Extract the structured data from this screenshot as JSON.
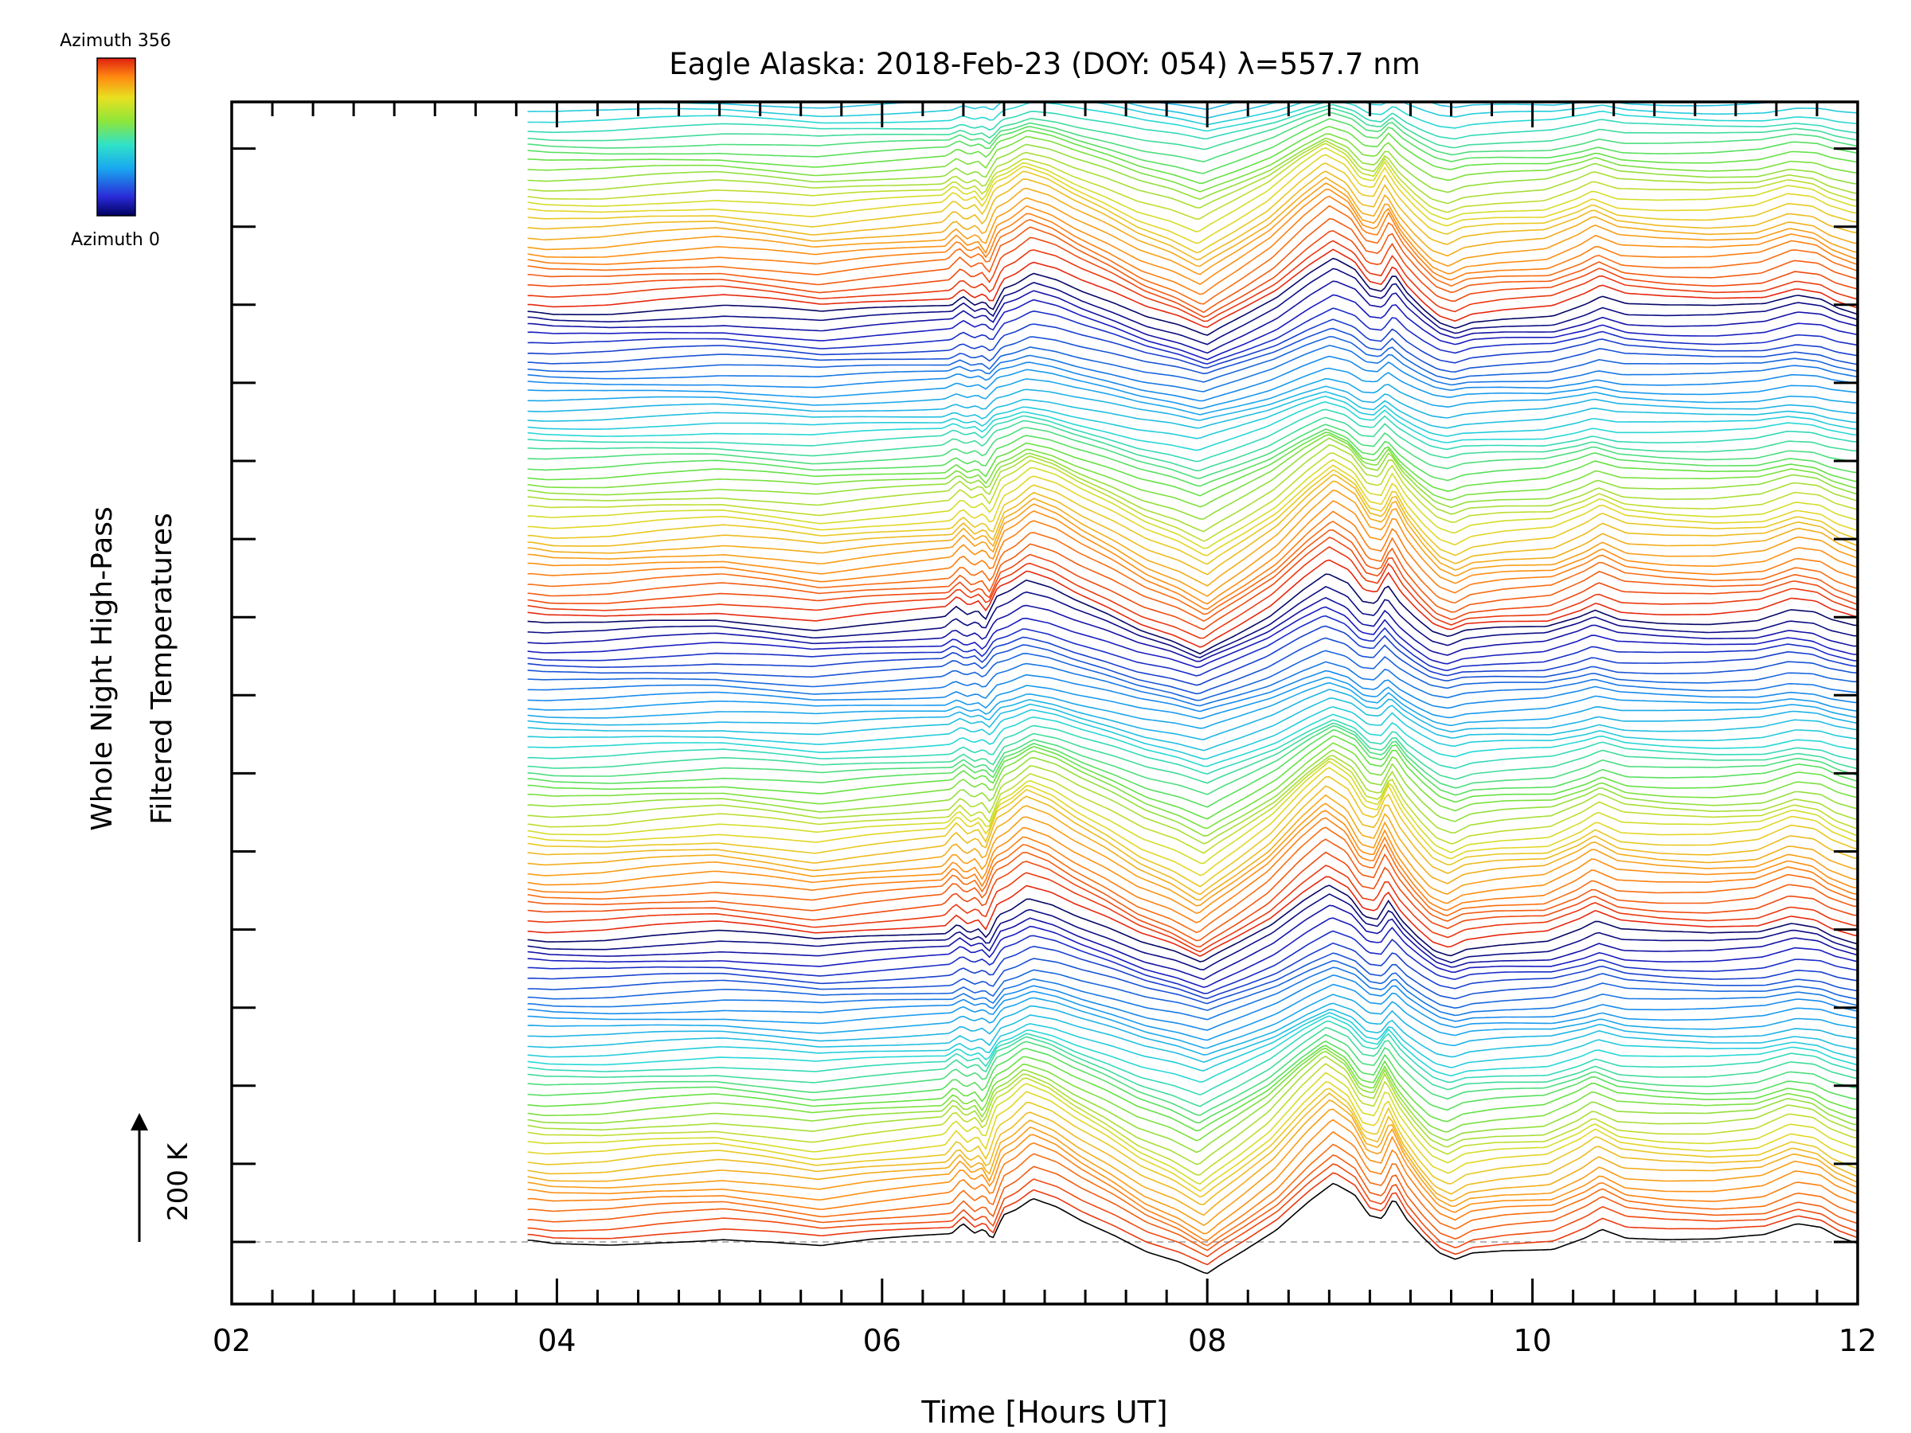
{
  "chart_data": {
    "type": "line",
    "title": "Eagle Alaska: 2018-Feb-23 (DOY: 054) λ=557.7 nm",
    "xlabel": "Time [Hours UT]",
    "ylabel_line1": "Whole Night High-Pass",
    "ylabel_line2": "Filtered Temperatures",
    "scale_bar_label": "200 K",
    "xlim": [
      2,
      12
    ],
    "x_ticks": [
      "02",
      "04",
      "06",
      "08",
      "10",
      "12"
    ],
    "data_start_hour": 3.82,
    "legend": {
      "kind": "colorbar",
      "placement": "top-left",
      "top_label": "Azimuth 356",
      "bottom_label": "Azimuth 0",
      "azimuth_min": 0,
      "azimuth_max": 356
    },
    "series_count": 140,
    "series_offset_step_K": 14,
    "baseline_dashed": true,
    "profile_knots": {
      "hours": [
        3.82,
        3.95,
        4.3,
        4.6,
        5.0,
        5.3,
        5.6,
        5.9,
        6.15,
        6.4,
        6.47,
        6.54,
        6.6,
        6.65,
        6.72,
        6.8,
        6.9,
        7.05,
        7.2,
        7.4,
        7.6,
        7.8,
        7.97,
        8.05,
        8.2,
        8.4,
        8.6,
        8.75,
        8.88,
        8.97,
        9.05,
        9.12,
        9.2,
        9.3,
        9.4,
        9.5,
        9.6,
        9.8,
        10.1,
        10.3,
        10.4,
        10.55,
        10.8,
        11.1,
        11.4,
        11.6,
        11.75,
        11.85,
        12.0
      ],
      "kelvin": [
        0,
        -4,
        -3,
        3,
        8,
        1,
        -8,
        0,
        5,
        10,
        28,
        12,
        20,
        2,
        45,
        55,
        75,
        62,
        40,
        16,
        -12,
        -30,
        -52,
        -38,
        -15,
        18,
        65,
        95,
        75,
        40,
        35,
        70,
        35,
        5,
        -20,
        -30,
        -18,
        -12,
        -8,
        12,
        26,
        10,
        5,
        3,
        8,
        26,
        20,
        5,
        -8
      ]
    }
  }
}
